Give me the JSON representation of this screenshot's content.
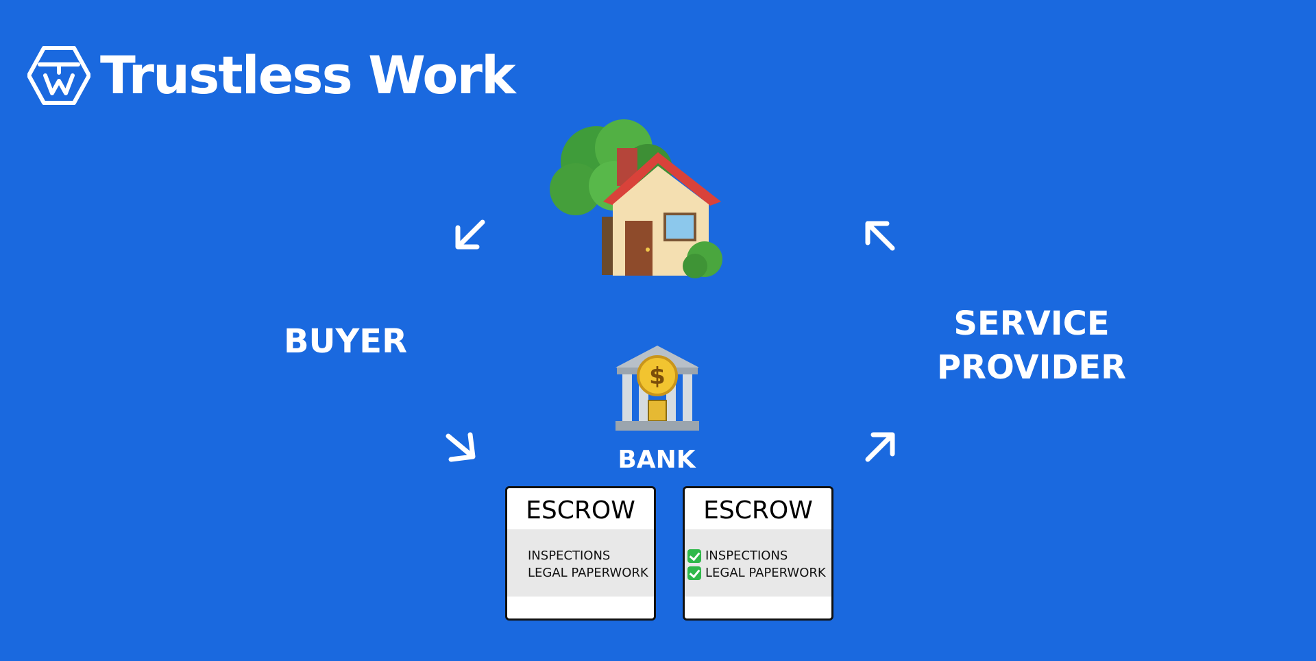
{
  "brand": {
    "name": "Trustless Work",
    "logo_icon": "trustless-work-logo"
  },
  "diagram": {
    "house_icon": "house-with-garden-icon",
    "bank_icon": "bank-icon",
    "buyer_label": "BUYER",
    "service_provider_label_line1": "SERVICE",
    "service_provider_label_line2": "PROVIDER",
    "bank_label": "BANK",
    "escrows": [
      {
        "title": "ESCROW",
        "conditions": [
          {
            "text": "INSPECTIONS",
            "checked": false
          },
          {
            "text": "LEGAL PAPERWORK",
            "checked": false
          }
        ]
      },
      {
        "title": "ESCROW",
        "conditions": [
          {
            "text": "INSPECTIONS",
            "checked": true
          },
          {
            "text": "LEGAL PAPERWORK",
            "checked": true
          }
        ]
      }
    ]
  },
  "colors": {
    "background": "#1a69df",
    "foreground": "#ffffff",
    "check": "#2fb84a"
  }
}
